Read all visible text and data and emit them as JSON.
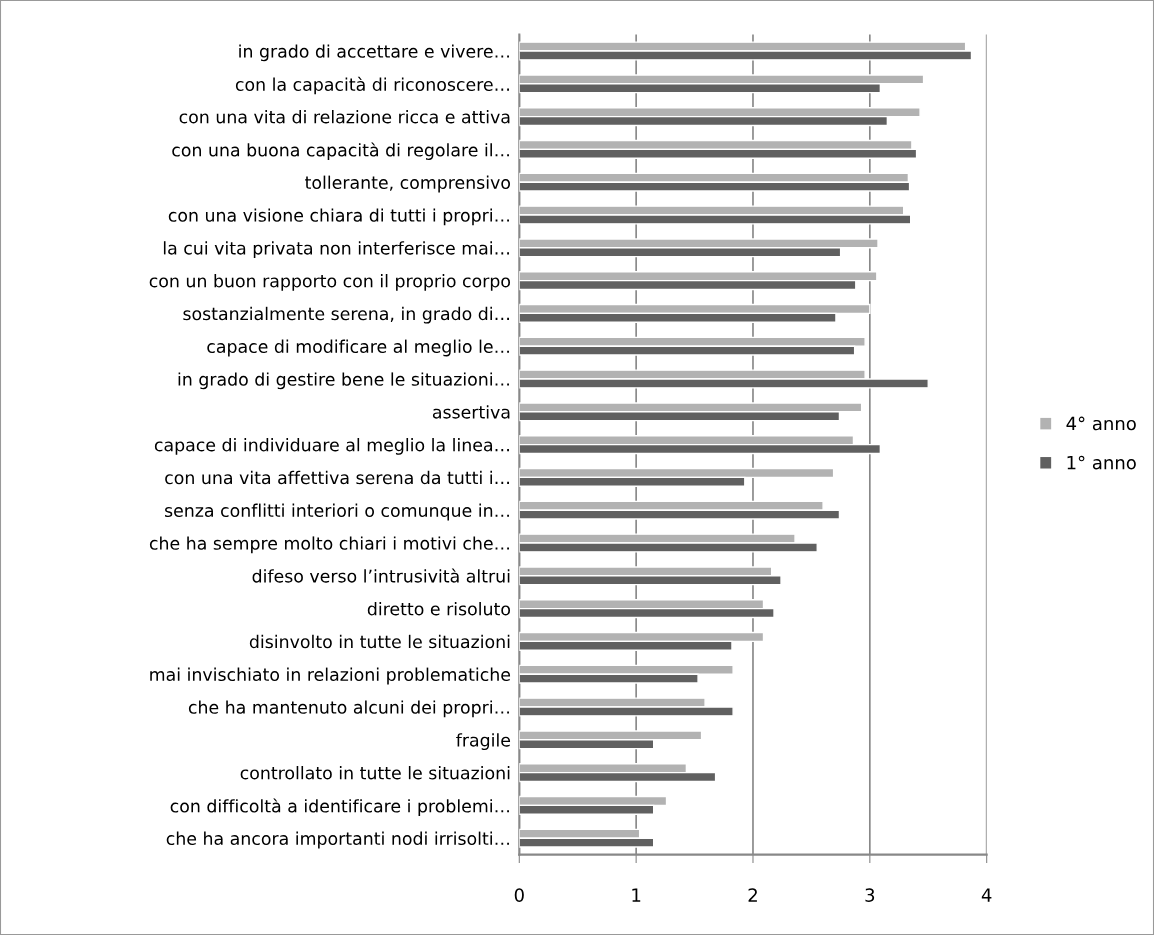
{
  "chart_data": {
    "type": "bar",
    "orientation": "horizontal",
    "categories": [
      "in grado di accettare e vivere…",
      "con la capacità di riconoscere…",
      "con una vita di relazione ricca e attiva",
      "con una buona capacità di regolare il…",
      "tollerante, comprensivo",
      "con una visione chiara di tutti i propri…",
      "la cui vita privata non interferisce mai…",
      "con un buon rapporto con il proprio corpo",
      "sostanzialmente serena, in grado di…",
      "capace di modificare al meglio le…",
      "in grado di gestire bene le situazioni…",
      "assertiva",
      "capace di individuare al meglio la linea…",
      "con una vita affettiva serena da tutti i…",
      "senza conflitti interiori o comunque in…",
      "che ha sempre molto chiari i motivi che…",
      "difeso verso l’intrusività altrui",
      "diretto e risoluto",
      "disinvolto in tutte le situazioni",
      "mai invischiato in relazioni problematiche",
      "che ha mantenuto alcuni dei propri…",
      "fragile",
      "controllato in tutte le situazioni",
      "con difficoltà a identificare i problemi…",
      "che ha ancora importanti nodi irrisolti…"
    ],
    "series": [
      {
        "name": "4° anno",
        "color": "#b2b2b2",
        "values": [
          3.82,
          3.46,
          3.43,
          3.36,
          3.33,
          3.29,
          3.07,
          3.06,
          3.0,
          2.96,
          2.96,
          2.93,
          2.86,
          2.69,
          2.6,
          2.36,
          2.16,
          2.09,
          2.09,
          1.83,
          1.59,
          1.56,
          1.43,
          1.26,
          1.03
        ]
      },
      {
        "name": "1° anno",
        "color": "#606060",
        "values": [
          3.87,
          3.09,
          3.15,
          3.4,
          3.34,
          3.35,
          2.75,
          2.88,
          2.71,
          2.87,
          3.5,
          2.74,
          3.09,
          1.93,
          2.74,
          2.55,
          2.24,
          2.18,
          1.82,
          1.53,
          1.83,
          1.15,
          1.68,
          1.15,
          1.15
        ]
      }
    ],
    "xlim": [
      0,
      4
    ],
    "xticks": [
      0,
      1,
      2,
      3,
      4
    ],
    "grid": "x",
    "legend": "right"
  }
}
